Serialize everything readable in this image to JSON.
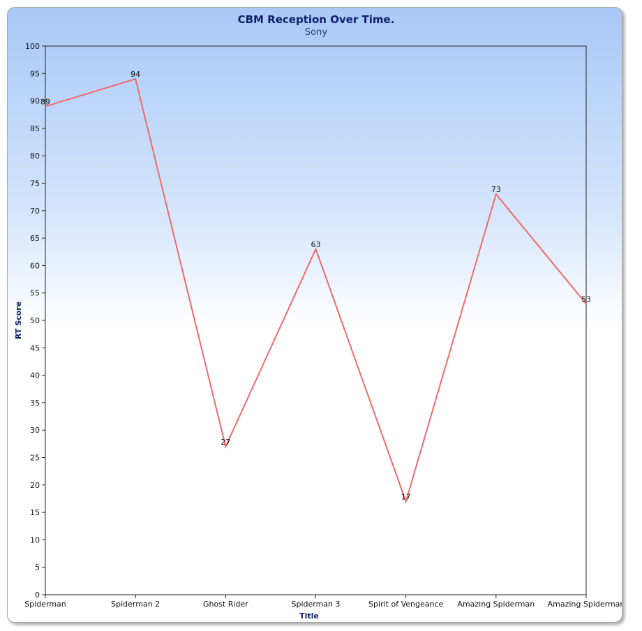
{
  "chart_data": {
    "type": "line",
    "title": "CBM Reception Over Time.",
    "subtitle": "Sony",
    "xlabel": "Title",
    "ylabel": "RT Score",
    "categories": [
      "Spiderman",
      "Spiderman 2",
      "Ghost Rider",
      "Spiderman 3",
      "Spirit of Vengeance",
      "Amazing Spiderman",
      "Amazing Spiderman"
    ],
    "values": [
      89,
      94,
      27,
      63,
      17,
      73,
      53
    ],
    "ylim": [
      0,
      100
    ],
    "ytick_step": 5,
    "line_color": "#f06a6a",
    "grid": false,
    "legend": "none"
  }
}
